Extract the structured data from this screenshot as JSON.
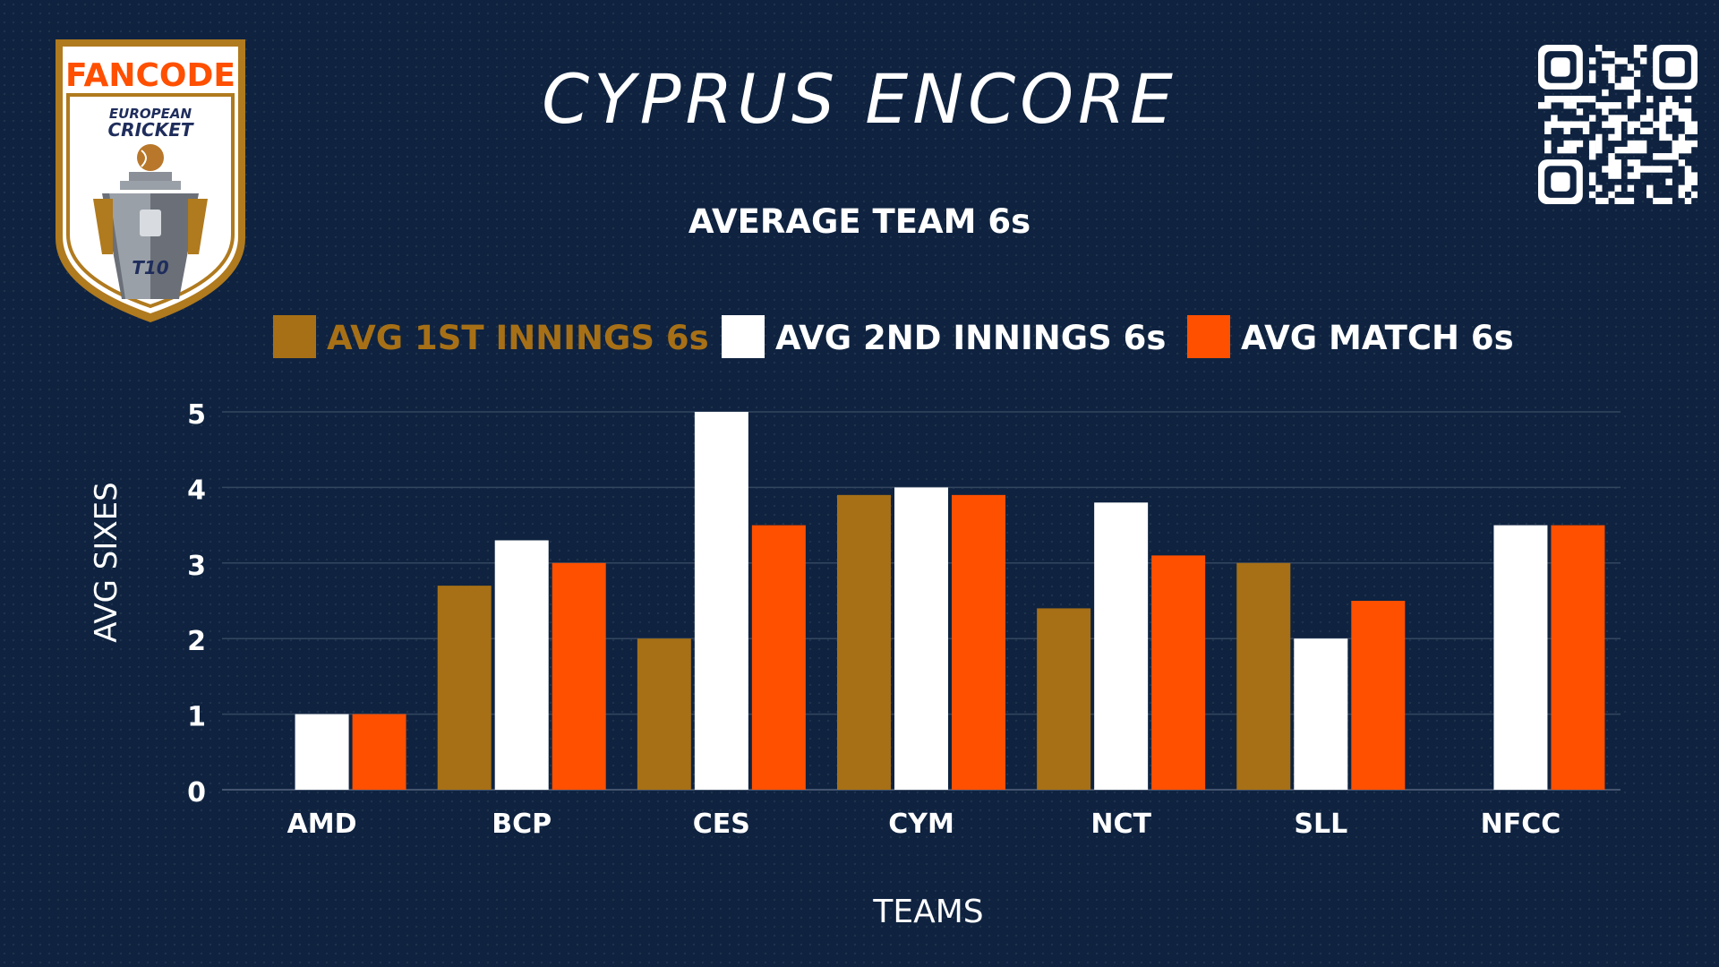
{
  "header": {
    "title": "CYPRUS ENCORE"
  },
  "logo": {
    "brand": "FANCODE",
    "line1": "EUROPEAN",
    "line2": "CRICKET",
    "format": "T10",
    "colors": {
      "gold": "#b07a1e",
      "orange": "#ff4f00",
      "navy": "#1f2d5c"
    }
  },
  "qr_code": {
    "icon": "qr-code-icon"
  },
  "chart_data": {
    "type": "bar",
    "title": "AVERAGE TEAM 6s",
    "xlabel": "TEAMS",
    "ylabel": "AVG SIXES",
    "ylim": [
      0,
      5
    ],
    "yticks": [
      0,
      1,
      2,
      3,
      4,
      5
    ],
    "grid": true,
    "legend_position": "top",
    "categories": [
      "AMD",
      "BCP",
      "CES",
      "CYM",
      "NCT",
      "SLL",
      "NFCC"
    ],
    "series": [
      {
        "name": "AVG 1ST INNINGS 6s",
        "color": "#a77016",
        "values": [
          0,
          2.7,
          2,
          3.9,
          2.4,
          3,
          0
        ]
      },
      {
        "name": "AVG 2ND INNINGS 6s",
        "color": "#ffffff",
        "values": [
          1,
          3.3,
          5,
          4,
          3.8,
          2,
          3.5
        ]
      },
      {
        "name": "AVG MATCH 6s",
        "color": "#ff5000",
        "values": [
          1,
          3,
          3.5,
          3.9,
          3.1,
          2.5,
          3.5
        ]
      }
    ]
  }
}
